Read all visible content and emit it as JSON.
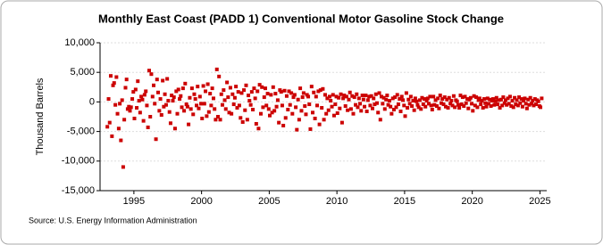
{
  "chart_data": {
    "type": "scatter",
    "title": "Monthly East Coast (PADD 1) Conventional Motor Gasoline Stock Change",
    "y_label": "Thousand Barrels",
    "source": "Source: U.S. Energy Information Administration",
    "xlim": [
      1992.5,
      2025.5
    ],
    "xticks": [
      1995,
      2000,
      2005,
      2010,
      2015,
      2020,
      2025
    ],
    "ylim": [
      -15000,
      10000
    ],
    "yticks": [
      {
        "value": -15000,
        "label": "-15,000"
      },
      {
        "value": -10000,
        "label": "-10,000"
      },
      {
        "value": -5000,
        "label": "-5,000"
      },
      0,
      {
        "value": 5000,
        "label": "5,000"
      },
      {
        "value": 10000,
        "label": "10,000"
      }
    ],
    "grid": true,
    "series": [
      {
        "name": "Stock Change",
        "color": "#cc0000",
        "x": [
          1993.04,
          1993.13,
          1993.21,
          1993.29,
          1993.38,
          1993.46,
          1993.54,
          1993.63,
          1993.71,
          1993.79,
          1993.88,
          1993.96,
          1994.04,
          1994.13,
          1994.21,
          1994.29,
          1994.38,
          1994.46,
          1994.54,
          1994.63,
          1994.71,
          1994.79,
          1994.88,
          1994.96,
          1995.04,
          1995.13,
          1995.21,
          1995.29,
          1995.38,
          1995.46,
          1995.54,
          1995.63,
          1995.71,
          1995.79,
          1995.88,
          1995.96,
          1996.04,
          1996.13,
          1996.21,
          1996.29,
          1996.38,
          1996.46,
          1996.54,
          1996.63,
          1996.71,
          1996.79,
          1996.88,
          1996.96,
          1997.04,
          1997.13,
          1997.21,
          1997.29,
          1997.38,
          1997.46,
          1997.54,
          1997.63,
          1997.71,
          1997.79,
          1997.88,
          1997.96,
          1998.04,
          1998.13,
          1998.21,
          1998.29,
          1998.38,
          1998.46,
          1998.54,
          1998.63,
          1998.71,
          1998.79,
          1998.88,
          1998.96,
          1999.04,
          1999.13,
          1999.21,
          1999.29,
          1999.38,
          1999.46,
          1999.54,
          1999.63,
          1999.71,
          1999.79,
          1999.88,
          1999.96,
          2000.04,
          2000.13,
          2000.21,
          2000.29,
          2000.38,
          2000.46,
          2000.54,
          2000.63,
          2000.71,
          2000.79,
          2000.88,
          2000.96,
          2001.04,
          2001.13,
          2001.21,
          2001.29,
          2001.38,
          2001.46,
          2001.54,
          2001.63,
          2001.71,
          2001.79,
          2001.88,
          2001.96,
          2002.04,
          2002.13,
          2002.21,
          2002.29,
          2002.38,
          2002.46,
          2002.54,
          2002.63,
          2002.71,
          2002.79,
          2002.88,
          2002.96,
          2003.04,
          2003.13,
          2003.21,
          2003.29,
          2003.38,
          2003.46,
          2003.54,
          2003.63,
          2003.71,
          2003.79,
          2003.88,
          2003.96,
          2004.04,
          2004.13,
          2004.21,
          2004.29,
          2004.38,
          2004.46,
          2004.54,
          2004.63,
          2004.71,
          2004.79,
          2004.88,
          2004.96,
          2005.04,
          2005.13,
          2005.21,
          2005.29,
          2005.38,
          2005.46,
          2005.54,
          2005.63,
          2005.71,
          2005.79,
          2005.88,
          2005.96,
          2006.04,
          2006.13,
          2006.21,
          2006.29,
          2006.38,
          2006.46,
          2006.54,
          2006.63,
          2006.71,
          2006.79,
          2006.88,
          2006.96,
          2007.04,
          2007.13,
          2007.21,
          2007.29,
          2007.38,
          2007.46,
          2007.54,
          2007.63,
          2007.71,
          2007.79,
          2007.88,
          2007.96,
          2008.04,
          2008.13,
          2008.21,
          2008.29,
          2008.38,
          2008.46,
          2008.54,
          2008.63,
          2008.71,
          2008.79,
          2008.88,
          2008.96,
          2009.04,
          2009.13,
          2009.21,
          2009.29,
          2009.38,
          2009.46,
          2009.54,
          2009.63,
          2009.71,
          2009.79,
          2009.88,
          2009.96,
          2010.04,
          2010.13,
          2010.21,
          2010.29,
          2010.38,
          2010.46,
          2010.54,
          2010.63,
          2010.71,
          2010.79,
          2010.88,
          2010.96,
          2011.04,
          2011.13,
          2011.21,
          2011.29,
          2011.38,
          2011.46,
          2011.54,
          2011.63,
          2011.71,
          2011.79,
          2011.88,
          2011.96,
          2012.04,
          2012.13,
          2012.21,
          2012.29,
          2012.38,
          2012.46,
          2012.54,
          2012.63,
          2012.71,
          2012.79,
          2012.88,
          2012.96,
          2013.04,
          2013.13,
          2013.21,
          2013.29,
          2013.38,
          2013.46,
          2013.54,
          2013.63,
          2013.71,
          2013.79,
          2013.88,
          2013.96,
          2014.04,
          2014.13,
          2014.21,
          2014.29,
          2014.38,
          2014.46,
          2014.54,
          2014.63,
          2014.71,
          2014.79,
          2014.88,
          2014.96,
          2015.04,
          2015.13,
          2015.21,
          2015.29,
          2015.38,
          2015.46,
          2015.54,
          2015.63,
          2015.71,
          2015.79,
          2015.88,
          2015.96,
          2016.04,
          2016.13,
          2016.21,
          2016.29,
          2016.38,
          2016.46,
          2016.54,
          2016.63,
          2016.71,
          2016.79,
          2016.88,
          2016.96,
          2017.04,
          2017.13,
          2017.21,
          2017.29,
          2017.38,
          2017.46,
          2017.54,
          2017.63,
          2017.71,
          2017.79,
          2017.88,
          2017.96,
          2018.04,
          2018.13,
          2018.21,
          2018.29,
          2018.38,
          2018.46,
          2018.54,
          2018.63,
          2018.71,
          2018.79,
          2018.88,
          2018.96,
          2019.04,
          2019.13,
          2019.21,
          2019.29,
          2019.38,
          2019.46,
          2019.54,
          2019.63,
          2019.71,
          2019.79,
          2019.88,
          2019.96,
          2020.04,
          2020.13,
          2020.21,
          2020.29,
          2020.38,
          2020.46,
          2020.54,
          2020.63,
          2020.71,
          2020.79,
          2020.88,
          2020.96,
          2021.04,
          2021.13,
          2021.21,
          2021.29,
          2021.38,
          2021.46,
          2021.54,
          2021.63,
          2021.71,
          2021.79,
          2021.88,
          2021.96,
          2022.04,
          2022.13,
          2022.21,
          2022.29,
          2022.38,
          2022.46,
          2022.54,
          2022.63,
          2022.71,
          2022.79,
          2022.88,
          2022.96,
          2023.04,
          2023.13,
          2023.21,
          2023.29,
          2023.38,
          2023.46,
          2023.54,
          2023.63,
          2023.71,
          2023.79,
          2023.88,
          2023.96,
          2024.04,
          2024.13,
          2024.21,
          2024.29,
          2024.38,
          2024.46,
          2024.54,
          2024.63,
          2024.71,
          2024.79,
          2024.88,
          2024.96,
          2025.04,
          2025.13
        ],
        "values": [
          -4200,
          500,
          -3500,
          4400,
          -5800,
          2800,
          3200,
          -500,
          4200,
          -2000,
          -4500,
          -300,
          -6500,
          300,
          -11000,
          -3000,
          2400,
          3800,
          -1200,
          -800,
          -1500,
          -900,
          500,
          1700,
          -2800,
          2100,
          -1000,
          3500,
          200,
          -1800,
          900,
          400,
          -3200,
          1200,
          1800,
          -600,
          -4300,
          5300,
          -2500,
          4700,
          900,
          2800,
          -300,
          -6300,
          3800,
          1600,
          -1500,
          500,
          -2200,
          3600,
          -800,
          1300,
          -500,
          3900,
          200,
          -1700,
          -3600,
          1100,
          200,
          800,
          -4500,
          1800,
          -2000,
          2100,
          500,
          1000,
          -900,
          2300,
          -1500,
          3100,
          -400,
          -800,
          -3800,
          700,
          -1200,
          2300,
          -2100,
          1300,
          500,
          -600,
          2600,
          -1100,
          900,
          -300,
          -2800,
          2700,
          -300,
          1800,
          -2400,
          3000,
          -1700,
          1400,
          -600,
          2300,
          600,
          -1200,
          -3000,
          5500,
          -2500,
          4300,
          -3000,
          1300,
          -500,
          2000,
          300,
          -1200,
          3300,
          800,
          -1800,
          2400,
          -2000,
          1300,
          -400,
          700,
          2600,
          -1000,
          1700,
          -600,
          -2700,
          1500,
          -3400,
          2000,
          -1400,
          2800,
          -3000,
          1100,
          200,
          -500,
          1700,
          -1300,
          2300,
          600,
          -3700,
          1800,
          -4500,
          2900,
          -2000,
          2500,
          -900,
          800,
          2300,
          -600,
          1400,
          -1200,
          -2300,
          1200,
          -1800,
          2500,
          -1500,
          1400,
          -800,
          300,
          -3500,
          2000,
          1700,
          -600,
          -4000,
          1900,
          -2700,
          1000,
          -1300,
          1800,
          -500,
          1500,
          -2000,
          800,
          1200,
          -900,
          -4700,
          400,
          -3000,
          2300,
          -1500,
          800,
          1500,
          -700,
          -2100,
          1200,
          900,
          -400,
          -4600,
          2600,
          -1800,
          1600,
          -2800,
          900,
          -600,
          1800,
          -3800,
          2000,
          -1000,
          2200,
          -3000,
          1200,
          -2000,
          600,
          -1400,
          900,
          200,
          -800,
          1200,
          -2300,
          -400,
          900,
          -1900,
          700,
          -1100,
          1300,
          -3500,
          600,
          1100,
          -700,
          900,
          -1400,
          400,
          1600,
          -1200,
          1000,
          -2000,
          800,
          -500,
          1300,
          -900,
          600,
          -300,
          -1500,
          1100,
          400,
          -800,
          1100,
          -1600,
          300,
          900,
          -600,
          1000,
          -1100,
          600,
          -400,
          1300,
          -200,
          -1800,
          1500,
          -3000,
          900,
          -300,
          700,
          -1200,
          400,
          1100,
          -500,
          200,
          -800,
          -2000,
          600,
          -1300,
          800,
          -900,
          1200,
          -400,
          500,
          -1600,
          900,
          300,
          -600,
          -2400,
          1500,
          -1000,
          400,
          -300,
          900,
          -700,
          200,
          -1400,
          600,
          100,
          -500,
          -900,
          300,
          -1200,
          700,
          -400,
          500,
          -800,
          200,
          600,
          -300,
          900,
          -600,
          -1300,
          900,
          -500,
          300,
          -700,
          600,
          -1100,
          1100,
          -200,
          500,
          -400,
          800,
          -800,
          400,
          -1000,
          700,
          -300,
          200,
          -600,
          1000,
          -900,
          300,
          100,
          -500,
          -1000,
          1100,
          -400,
          800,
          -700,
          900,
          -200,
          500,
          -1100,
          400,
          700,
          -300,
          -1500,
          1000,
          -600,
          800,
          -900,
          300,
          600,
          -400,
          200,
          -1000,
          500,
          -200,
          -800,
          600,
          -300,
          400,
          -700,
          200,
          500,
          -500,
          100,
          700,
          -400,
          300,
          -1000,
          400,
          -600,
          800,
          -200,
          300,
          -500,
          600,
          -300,
          900,
          -700,
          200,
          -900,
          700,
          -400,
          300,
          -600,
          800,
          -200,
          500,
          -800,
          200,
          600,
          -300,
          -1100,
          400,
          -500,
          700,
          -300,
          200,
          -600,
          500,
          -400,
          300,
          100,
          -700,
          -900,
          600
        ]
      }
    ]
  }
}
